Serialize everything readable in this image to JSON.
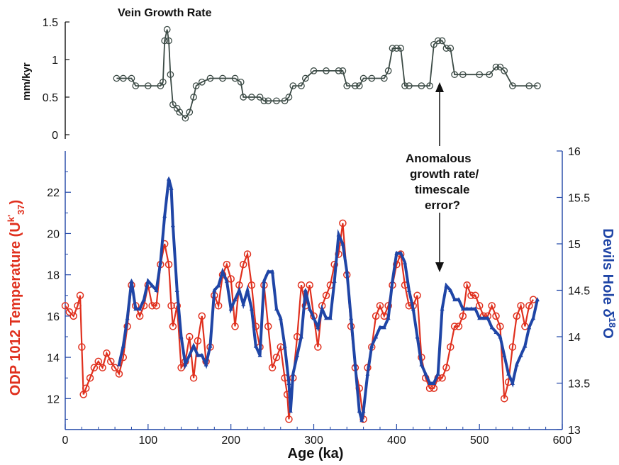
{
  "colors": {
    "top_series": "#3b4a45",
    "red_series": "#e0301e",
    "blue_series": "#1f45a6",
    "black": "#111111"
  },
  "chart_data": [
    {
      "type": "line",
      "title": "Vein Growth Rate",
      "xlabel": "",
      "ylabel": "mm/kyr",
      "xlim": [
        0,
        600
      ],
      "ylim": [
        0,
        1.5
      ],
      "yticks": [
        "0",
        "0.5",
        "1",
        "1.5"
      ],
      "series": [
        {
          "x": [
            62,
            70,
            80,
            85,
            100,
            115,
            118,
            120,
            123,
            125,
            127,
            130,
            135,
            138,
            145,
            150,
            155,
            158,
            165,
            175,
            190,
            205,
            212,
            215,
            225,
            235,
            240,
            245,
            255,
            265,
            270,
            275,
            285,
            290,
            300,
            315,
            330,
            335,
            340,
            350,
            355,
            360,
            370,
            385,
            390,
            395,
            400,
            405,
            410,
            415,
            430,
            440,
            445,
            450,
            455,
            460,
            465,
            470,
            480,
            500,
            512,
            520,
            525,
            530,
            540,
            560,
            570
          ],
          "y": [
            0.75,
            0.75,
            0.75,
            0.65,
            0.65,
            0.65,
            0.7,
            1.25,
            1.4,
            1.25,
            0.8,
            0.4,
            0.35,
            0.3,
            0.22,
            0.3,
            0.5,
            0.65,
            0.7,
            0.75,
            0.75,
            0.75,
            0.7,
            0.5,
            0.5,
            0.5,
            0.45,
            0.45,
            0.45,
            0.45,
            0.5,
            0.65,
            0.65,
            0.75,
            0.85,
            0.85,
            0.85,
            0.85,
            0.65,
            0.65,
            0.65,
            0.75,
            0.75,
            0.75,
            0.85,
            1.15,
            1.15,
            1.15,
            0.65,
            0.65,
            0.65,
            0.65,
            1.2,
            1.25,
            1.25,
            1.15,
            1.15,
            0.8,
            0.8,
            0.8,
            0.8,
            0.9,
            0.9,
            0.85,
            0.65,
            0.65,
            0.65
          ]
        }
      ]
    },
    {
      "type": "line",
      "title": "",
      "xlabel": "Age (ka)",
      "xlim": [
        0,
        600
      ],
      "xticks": [
        "0",
        "100",
        "200",
        "300",
        "400",
        "500",
        "600"
      ],
      "ylabel_left": [
        "ODP 1012 Temperature (U",
        "k'",
        "37",
        ")"
      ],
      "ylim_left": [
        10.5,
        24
      ],
      "yticks_left": [
        "12",
        "14",
        "16",
        "18",
        "20",
        "22"
      ],
      "ylabel_right": [
        "Devils Hole ",
        "δ",
        "18",
        "O"
      ],
      "ylim_right": [
        13,
        16
      ],
      "yticks_right": [
        "13",
        "13.5",
        "14",
        "14.5",
        "15",
        "15.5",
        "16"
      ],
      "annotation": {
        "lines": [
          "Anomalous",
          "growth rate/",
          "timescale",
          "error?"
        ],
        "arrow_up_target": [
          450,
          1.15
        ],
        "arrow_down_target_right_axis": [
          455,
          14.55
        ]
      },
      "series": [
        {
          "axis": "left",
          "x": [
            0,
            5,
            10,
            15,
            18,
            20,
            22,
            25,
            30,
            35,
            40,
            45,
            50,
            55,
            60,
            65,
            70,
            75,
            80,
            85,
            90,
            95,
            100,
            105,
            110,
            115,
            120,
            125,
            128,
            130,
            135,
            140,
            145,
            150,
            155,
            160,
            165,
            170,
            175,
            180,
            185,
            190,
            195,
            200,
            205,
            210,
            215,
            220,
            225,
            230,
            235,
            240,
            245,
            250,
            255,
            260,
            265,
            268,
            270,
            275,
            280,
            285,
            290,
            295,
            300,
            305,
            310,
            315,
            320,
            325,
            330,
            335,
            340,
            345,
            350,
            355,
            360,
            365,
            370,
            375,
            380,
            385,
            390,
            395,
            400,
            405,
            410,
            415,
            420,
            425,
            430,
            435,
            440,
            445,
            450,
            455,
            460,
            465,
            470,
            475,
            480,
            485,
            490,
            495,
            500,
            505,
            510,
            515,
            520,
            525,
            530,
            535,
            540,
            545,
            550,
            555,
            560,
            565
          ],
          "y": [
            16.5,
            16.2,
            16,
            16.5,
            17,
            14.5,
            12.2,
            12.5,
            13,
            13.5,
            13.8,
            13.5,
            14.2,
            13.8,
            13.5,
            13.2,
            14,
            15.5,
            17.5,
            16.5,
            16,
            16.5,
            17.5,
            16.5,
            16.5,
            18.5,
            19.5,
            18.5,
            16.5,
            15.5,
            16.5,
            13.5,
            13.8,
            15,
            13,
            14.8,
            16,
            13.8,
            14.5,
            17,
            16.5,
            18,
            18.5,
            17.8,
            15.5,
            17.5,
            18.5,
            19,
            17.5,
            15.5,
            14.5,
            17.5,
            15.5,
            13.5,
            14,
            14.5,
            13,
            12.2,
            11,
            13,
            15,
            17.5,
            16.5,
            17.5,
            16,
            14.5,
            16.5,
            17,
            17.5,
            18.5,
            19,
            20.5,
            18,
            15.5,
            13.5,
            12.5,
            11,
            13.5,
            14.5,
            16,
            16.5,
            16,
            16.5,
            17.5,
            18.5,
            19,
            17.5,
            16.5,
            16.5,
            17,
            14,
            13,
            12.5,
            12.5,
            13,
            13,
            13.5,
            14.5,
            15.5,
            15.5,
            16,
            17.5,
            17,
            17,
            16.5,
            16,
            16,
            16.5,
            16,
            15.5,
            12,
            12.8,
            14.5,
            16,
            16.5,
            15.5,
            16.5,
            16.8
          ]
        },
        {
          "axis": "right",
          "x": [
            65,
            70,
            75,
            80,
            85,
            90,
            95,
            100,
            105,
            110,
            115,
            120,
            125,
            128,
            130,
            135,
            140,
            145,
            150,
            155,
            160,
            165,
            170,
            175,
            180,
            185,
            190,
            195,
            200,
            205,
            210,
            215,
            220,
            225,
            230,
            235,
            240,
            245,
            250,
            255,
            260,
            265,
            270,
            272,
            275,
            280,
            285,
            290,
            295,
            300,
            305,
            310,
            315,
            320,
            325,
            330,
            335,
            340,
            345,
            350,
            355,
            358,
            360,
            365,
            370,
            375,
            380,
            385,
            390,
            395,
            400,
            405,
            410,
            415,
            420,
            425,
            430,
            435,
            440,
            445,
            450,
            455,
            460,
            465,
            470,
            475,
            480,
            485,
            490,
            495,
            500,
            505,
            510,
            515,
            520,
            525,
            530,
            535,
            540,
            545,
            550,
            555,
            560,
            565,
            570
          ],
          "y": [
            13.7,
            13.9,
            14.2,
            14.6,
            14.3,
            14.3,
            14.4,
            14.6,
            14.55,
            14.5,
            14.8,
            15.3,
            15.7,
            15.6,
            15.2,
            14.5,
            14,
            13.7,
            13.8,
            13.9,
            13.8,
            13.8,
            13.7,
            13.9,
            14.5,
            14.55,
            14.7,
            14.6,
            14.3,
            14.4,
            14.5,
            14.35,
            14.5,
            14.3,
            13.9,
            13.8,
            14.6,
            14.7,
            14.7,
            14.3,
            14.2,
            13.9,
            13.5,
            13.2,
            13.6,
            13.8,
            14,
            14.5,
            14.3,
            14.2,
            14.1,
            14.3,
            14.2,
            14.2,
            14.6,
            15.1,
            15,
            14.7,
            14.2,
            13.7,
            13.2,
            13.1,
            13.2,
            13.6,
            13.9,
            14,
            14.1,
            14.1,
            14.2,
            14.6,
            14.9,
            14.9,
            14.8,
            14.5,
            14.3,
            14,
            13.7,
            13.6,
            13.5,
            13.5,
            13.6,
            14.3,
            14.55,
            14.5,
            14.4,
            14.4,
            14.3,
            14.3,
            14.3,
            14.3,
            14.2,
            14.2,
            14.2,
            14.1,
            14.05,
            14,
            13.8,
            13.6,
            13.5,
            13.7,
            13.8,
            13.9,
            14.1,
            14.2,
            14.4
          ]
        }
      ]
    }
  ]
}
